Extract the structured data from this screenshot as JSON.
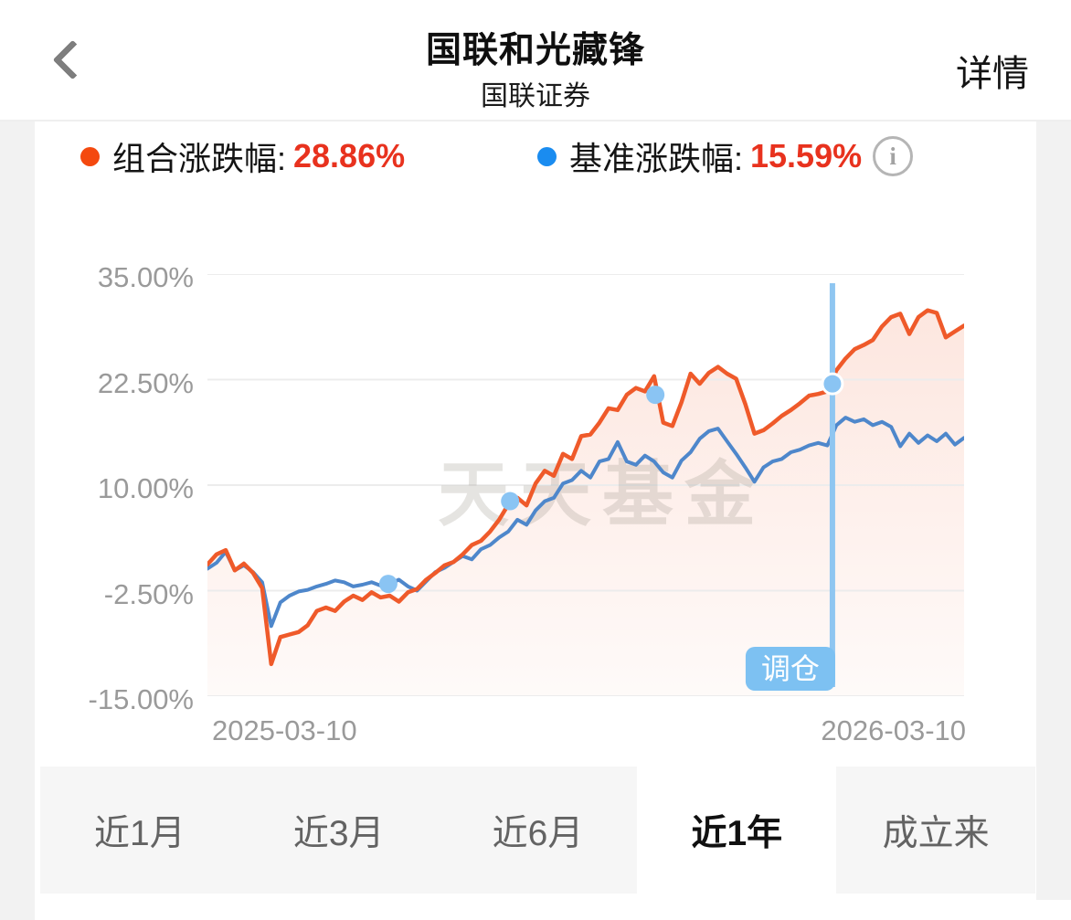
{
  "header": {
    "title": "国联和光藏锋",
    "subtitle": "国联证券",
    "detail_label": "详情"
  },
  "legend": {
    "portfolio": {
      "label": "组合涨跌幅:",
      "value": "28.86%",
      "dot_color": "#f4490f"
    },
    "benchmark": {
      "label": "基准涨跌幅:",
      "value": "15.59%",
      "dot_color": "#1a8cf0"
    },
    "value_color": "#e8321e",
    "info_glyph": "i"
  },
  "chart_data": {
    "type": "line",
    "title": "",
    "xlabel": "",
    "ylabel": "",
    "x_labels": [
      "2025-03-10",
      "2026-03-10"
    ],
    "ylim": [
      -15,
      35
    ],
    "grid": "horizontal",
    "legend_position": "top",
    "watermark": "天天基金",
    "y_ticks": [
      {
        "label": "35.00%",
        "value": 35
      },
      {
        "label": "22.50%",
        "value": 22.5
      },
      {
        "label": "10.00%",
        "value": 10
      },
      {
        "label": "-2.50%",
        "value": -2.5
      },
      {
        "label": "-15.00%",
        "value": -15
      }
    ],
    "series": [
      {
        "name": "组合涨跌幅",
        "color": "#ef5a2a",
        "fill": true,
        "values": [
          0.6,
          1.8,
          2.3,
          -0.1,
          0.7,
          -0.4,
          -2.2,
          -11.2,
          -8.0,
          -7.7,
          -7.4,
          -6.6,
          -4.9,
          -4.5,
          -4.9,
          -3.8,
          -3.1,
          -3.6,
          -2.7,
          -3.3,
          -3.1,
          -3.8,
          -2.7,
          -2.3,
          -1.2,
          -0.4,
          0.5,
          0.9,
          1.8,
          2.9,
          3.4,
          4.5,
          5.9,
          7.7,
          8.5,
          7.6,
          10.2,
          11.7,
          11.1,
          13.7,
          13.1,
          15.8,
          16.0,
          17.4,
          19.1,
          18.9,
          20.7,
          21.5,
          21.1,
          22.9,
          17.4,
          17.0,
          19.8,
          23.2,
          22.0,
          23.3,
          24.0,
          23.2,
          22.6,
          19.6,
          16.1,
          16.5,
          17.3,
          18.2,
          18.9,
          19.7,
          20.6,
          20.8,
          21.1,
          23.6,
          25.0,
          26.1,
          26.6,
          27.2,
          28.8,
          29.9,
          30.3,
          27.9,
          29.9,
          30.7,
          30.4,
          27.5,
          28.2,
          28.9
        ]
      },
      {
        "name": "基准涨跌幅",
        "color": "#4e87cb",
        "fill": false,
        "values": [
          0.1,
          0.8,
          2.1,
          -0.1,
          0.5,
          -0.3,
          -1.5,
          -6.7,
          -3.9,
          -3.1,
          -2.6,
          -2.4,
          -2.0,
          -1.7,
          -1.3,
          -1.5,
          -2.0,
          -1.8,
          -1.5,
          -1.9,
          -1.7,
          -1.2,
          -2.0,
          -2.5,
          -1.4,
          -0.3,
          0.2,
          0.9,
          1.6,
          1.2,
          2.4,
          2.9,
          3.8,
          4.5,
          5.9,
          5.3,
          7.0,
          8.1,
          8.5,
          10.2,
          10.6,
          11.7,
          10.9,
          12.8,
          13.1,
          15.1,
          12.8,
          12.4,
          13.5,
          12.8,
          11.5,
          10.9,
          12.9,
          13.9,
          15.5,
          16.4,
          16.7,
          15.2,
          13.7,
          12.1,
          10.4,
          12.1,
          12.8,
          13.1,
          13.9,
          14.2,
          14.7,
          15.0,
          14.7,
          17.1,
          18.0,
          17.5,
          17.8,
          17.1,
          17.5,
          16.9,
          14.6,
          16.1,
          15.0,
          15.9,
          15.2,
          16.1,
          14.8,
          15.6
        ]
      }
    ],
    "markers": {
      "color": "#8ac4f3",
      "points": [
        {
          "xf": 0.239,
          "value": -1.7
        },
        {
          "xf": 0.4,
          "value": 8.1
        },
        {
          "xf": 0.592,
          "value": 20.7
        },
        {
          "xf": 0.826,
          "value": 22.0
        }
      ]
    },
    "rebalance_flag": {
      "xf": 0.826,
      "label": "调仓",
      "line_color_top": "#cfe6f8",
      "line_color_bottom": "#8fc6f1",
      "badge_color": "#7dc1f2",
      "badge_text_color": "#ffffff"
    }
  },
  "tabs": [
    {
      "label": "近1月",
      "selected": false
    },
    {
      "label": "近3月",
      "selected": false
    },
    {
      "label": "近6月",
      "selected": false
    },
    {
      "label": "近1年",
      "selected": true
    },
    {
      "label": "成立来",
      "selected": false
    }
  ]
}
